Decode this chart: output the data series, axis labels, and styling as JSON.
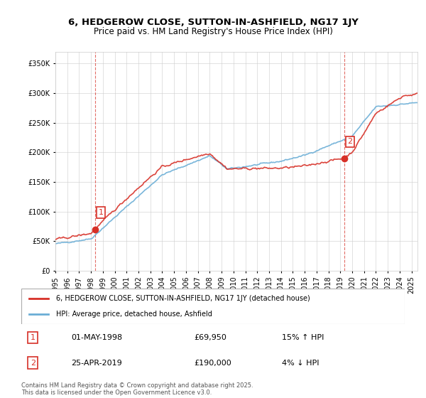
{
  "title": "6, HEDGEROW CLOSE, SUTTON-IN-ASHFIELD, NG17 1JY",
  "subtitle": "Price paid vs. HM Land Registry's House Price Index (HPI)",
  "legend_line1": "6, HEDGEROW CLOSE, SUTTON-IN-ASHFIELD, NG17 1JY (detached house)",
  "legend_line2": "HPI: Average price, detached house, Ashfield",
  "annotation1_label": "1",
  "annotation1_date": "01-MAY-1998",
  "annotation1_price": "£69,950",
  "annotation1_hpi": "15% ↑ HPI",
  "annotation2_label": "2",
  "annotation2_date": "25-APR-2019",
  "annotation2_price": "£190,000",
  "annotation2_hpi": "4% ↓ HPI",
  "footer": "Contains HM Land Registry data © Crown copyright and database right 2025.\nThis data is licensed under the Open Government Licence v3.0.",
  "sale1_year": 1998.33,
  "sale1_price": 69950,
  "sale2_year": 2019.32,
  "sale2_price": 190000,
  "hpi_color": "#6baed6",
  "price_color": "#d73027",
  "vline_color": "#d73027",
  "background_color": "#ffffff",
  "grid_color": "#cccccc",
  "ylim": [
    0,
    370000
  ],
  "xlim_start": 1995,
  "xlim_end": 2025.5
}
